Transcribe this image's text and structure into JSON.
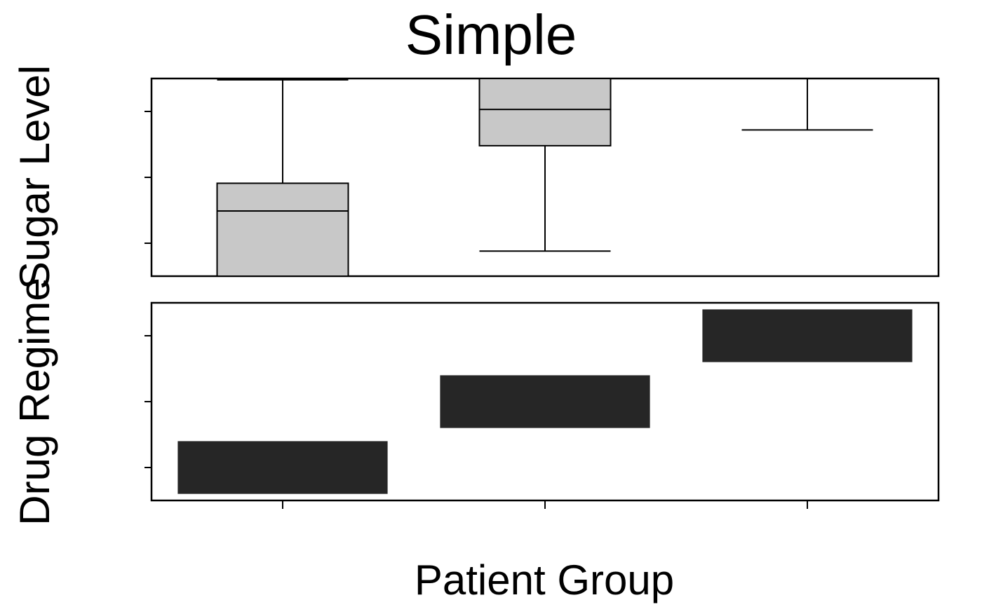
{
  "chart_data": {
    "type": "box",
    "title": "Simple",
    "xlabel": "Patient Group",
    "ylabel_top": "Sugar Level",
    "ylabel_bottom": "Drug Regime",
    "categories": [
      "",
      "",
      ""
    ],
    "grid": false,
    "legend": "none",
    "panels": [
      {
        "name": "Sugar Level",
        "kind": "boxplot",
        "ylim": [
          0,
          3
        ],
        "yticks": [
          0.5,
          1.5,
          2.5
        ],
        "ytick_labels": [
          "",
          "",
          ""
        ],
        "boxes": [
          {
            "whisker_low": 0,
            "q1": 0,
            "median": 0.99,
            "q3": 1.41,
            "whisker_high": 2.98
          },
          {
            "whisker_low": 0.38,
            "q1": 1.98,
            "median": 2.53,
            "q3": 3,
            "whisker_high": 3
          },
          {
            "whisker_low": 2.22,
            "q1": 3,
            "median": 3,
            "q3": 3,
            "whisker_high": 3
          }
        ],
        "box_color": "#c8c8c8",
        "line_color": "#000000"
      },
      {
        "name": "Drug Regime",
        "kind": "tile",
        "ylim": [
          0,
          3
        ],
        "yticks": [
          0.5,
          1.5,
          2.5
        ],
        "ytick_labels": [
          "",
          "",
          ""
        ],
        "tiles": [
          {
            "category": 0,
            "y_center": 0.5,
            "width": 0.8,
            "height": 0.8
          },
          {
            "category": 1,
            "y_center": 1.5,
            "width": 0.8,
            "height": 0.8
          },
          {
            "category": 2,
            "y_center": 2.5,
            "width": 0.8,
            "height": 0.8
          }
        ],
        "tile_color": "#262626"
      }
    ]
  }
}
